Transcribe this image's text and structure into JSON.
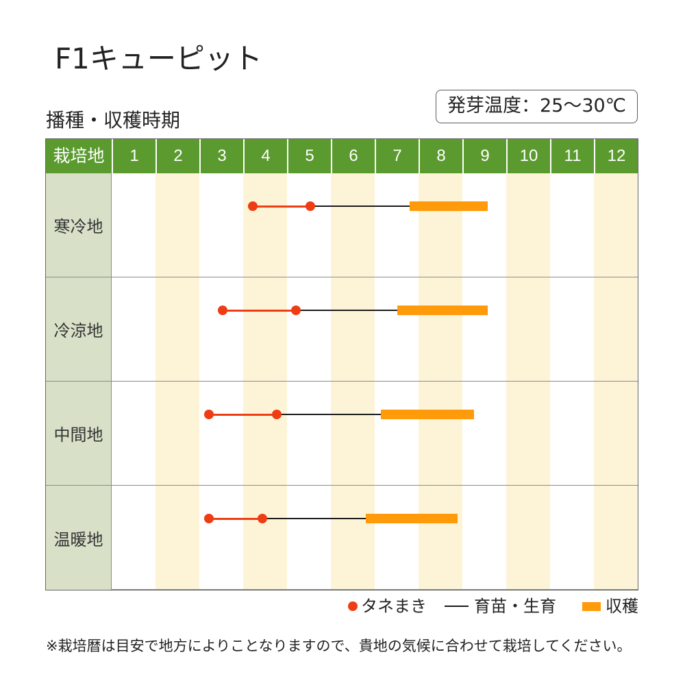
{
  "product_name": "F1キューピット",
  "germination_temperature": "発芽温度：25～30℃",
  "footnote": "※栽培暦は目安で地方によりことなりますので、貴地の気候に合わせて栽培してください。",
  "colors": {
    "header_bg": "#5a9a2e",
    "header_text": "#ffffff",
    "row_label_bg": "#d8e1c8",
    "stripe_bg": "#fdf4d8",
    "grid_line": "#8a8a8a",
    "text": "#222222"
  },
  "chart_data": {
    "type": "bar",
    "orientation": "horizontal",
    "title": "播種・収穫時期",
    "ylabel": "栽培地",
    "xticks": [
      "1",
      "2",
      "3",
      "4",
      "5",
      "6",
      "7",
      "8",
      "9",
      "10",
      "11",
      "12"
    ],
    "xlim": [
      1,
      13
    ],
    "categories": [
      "寒冷地",
      "冷涼地",
      "中間地",
      "温暖地"
    ],
    "series": [
      {
        "name": "タネまき",
        "color": "#ee3d14",
        "values": [
          [
            4.22,
            5.53
          ],
          [
            3.53,
            5.2
          ],
          [
            3.22,
            4.77
          ],
          [
            3.22,
            4.44
          ]
        ]
      },
      {
        "name": "育苗・生育",
        "color": "#1a1a1a",
        "values": [
          [
            5.53,
            7.8
          ],
          [
            5.2,
            7.52
          ],
          [
            4.77,
            7.14
          ],
          [
            4.44,
            6.8
          ]
        ]
      },
      {
        "name": "収穫",
        "color": "#ff9a0a",
        "values": [
          [
            7.8,
            9.58
          ],
          [
            7.52,
            9.58
          ],
          [
            7.14,
            9.27
          ],
          [
            6.8,
            8.89
          ]
        ]
      }
    ],
    "grid": true,
    "legend": "bottom-right"
  }
}
